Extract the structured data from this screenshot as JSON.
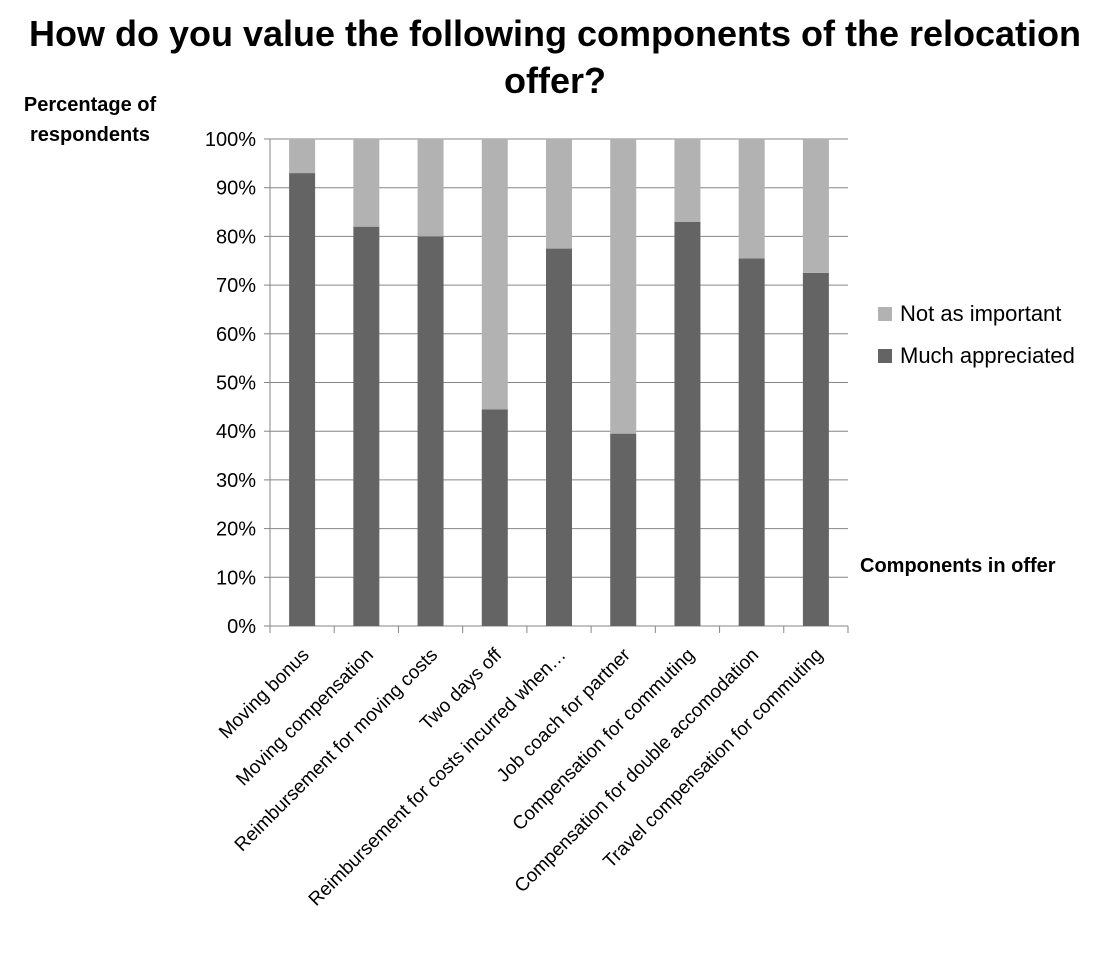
{
  "chart_data": {
    "type": "bar",
    "stacked": true,
    "title": "How do you value the following components of the relocation offer?",
    "ylabel": "Percentage of respondents",
    "xlabel": "Components in offer",
    "ylim": [
      0,
      100
    ],
    "yticks": [
      "0%",
      "10%",
      "20%",
      "30%",
      "40%",
      "50%",
      "60%",
      "70%",
      "80%",
      "90%",
      "100%"
    ],
    "categories": [
      "Moving bonus",
      "Moving compensation",
      "Reimbursement for moving costs",
      "Two days off",
      "Reimbursement for costs incurred when…",
      "Job coach for partner",
      "Compensation for commuting",
      "Compensation for double accomodation",
      "Travel compensation for commuting"
    ],
    "series": [
      {
        "name": "Much appreciated",
        "color": "#646464",
        "values": [
          93,
          82,
          80,
          44.5,
          77.5,
          39.5,
          83,
          75.5,
          72.5
        ]
      },
      {
        "name": "Not as important",
        "color": "#b2b2b2",
        "values": [
          7,
          18,
          20,
          55.5,
          22.5,
          60.5,
          17,
          24.5,
          27.5
        ]
      }
    ],
    "legend": "right",
    "grid": true
  }
}
